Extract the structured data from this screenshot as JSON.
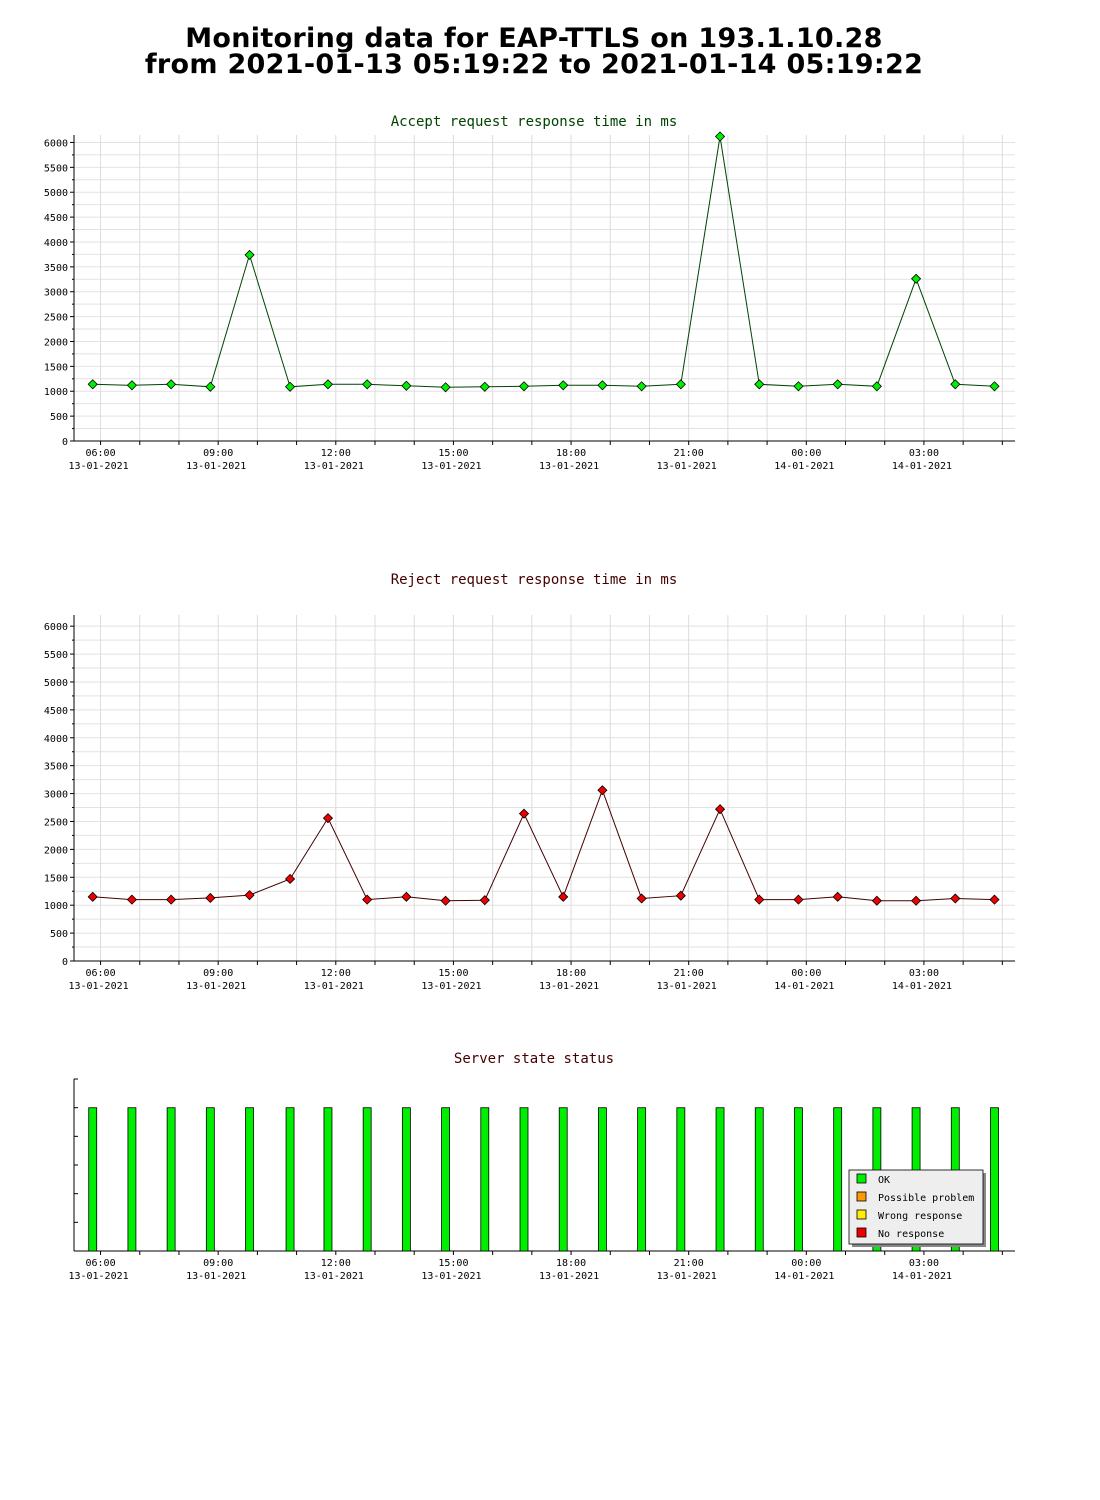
{
  "page": {
    "title_line1": "Monitoring data for EAP-TTLS on 193.1.10.28",
    "title_line2": "from 2021-01-13 05:19:22 to 2021-01-14 05:19:22"
  },
  "chart_data": [
    {
      "type": "line",
      "title": "Accept request response time in ms",
      "title_color": "#004400",
      "marker_color": "#00ee00",
      "line_color": "#004400",
      "ylim": [
        0,
        6150
      ],
      "y_ticks": [
        0,
        500,
        1000,
        1500,
        2000,
        2500,
        3000,
        3500,
        4000,
        4500,
        5000,
        5500,
        6000
      ],
      "x_ticks": [
        {
          "time": "06:00",
          "date": "13-01-2021"
        },
        {
          "time": "09:00",
          "date": "13-01-2021"
        },
        {
          "time": "12:00",
          "date": "13-01-2021"
        },
        {
          "time": "15:00",
          "date": "13-01-2021"
        },
        {
          "time": "18:00",
          "date": "13-01-2021"
        },
        {
          "time": "21:00",
          "date": "13-01-2021"
        },
        {
          "time": "00:00",
          "date": "14-01-2021"
        },
        {
          "time": "03:00",
          "date": "14-01-2021"
        }
      ],
      "x": [
        "2021-01-13 05:48",
        "2021-01-13 06:48",
        "2021-01-13 07:48",
        "2021-01-13 08:48",
        "2021-01-13 09:48",
        "2021-01-13 10:50",
        "2021-01-13 11:48",
        "2021-01-13 12:48",
        "2021-01-13 13:48",
        "2021-01-13 14:48",
        "2021-01-13 15:48",
        "2021-01-13 16:48",
        "2021-01-13 17:48",
        "2021-01-13 18:48",
        "2021-01-13 19:48",
        "2021-01-13 20:48",
        "2021-01-13 21:48",
        "2021-01-13 22:48",
        "2021-01-13 23:48",
        "2021-01-14 00:48",
        "2021-01-14 01:48",
        "2021-01-14 02:48",
        "2021-01-14 03:48",
        "2021-01-14 04:48"
      ],
      "series": [
        {
          "values": [
            1140,
            1120,
            1140,
            1090,
            3740,
            1090,
            1140,
            1140,
            1110,
            1080,
            1090,
            1100,
            1120,
            1120,
            1100,
            1140,
            6120,
            1140,
            1100,
            1140,
            1100,
            3260,
            1140,
            1100
          ]
        }
      ]
    },
    {
      "type": "line",
      "title": "Reject request response time in ms",
      "title_color": "#440000",
      "marker_color": "#ee0000",
      "line_color": "#440000",
      "ylim": [
        0,
        6200
      ],
      "y_ticks": [
        0,
        500,
        1000,
        1500,
        2000,
        2500,
        3000,
        3500,
        4000,
        4500,
        5000,
        5500,
        6000
      ],
      "x_ticks": [
        {
          "time": "06:00",
          "date": "13-01-2021"
        },
        {
          "time": "09:00",
          "date": "13-01-2021"
        },
        {
          "time": "12:00",
          "date": "13-01-2021"
        },
        {
          "time": "15:00",
          "date": "13-01-2021"
        },
        {
          "time": "18:00",
          "date": "13-01-2021"
        },
        {
          "time": "21:00",
          "date": "13-01-2021"
        },
        {
          "time": "00:00",
          "date": "14-01-2021"
        },
        {
          "time": "03:00",
          "date": "14-01-2021"
        }
      ],
      "x": [
        "2021-01-13 05:48",
        "2021-01-13 06:48",
        "2021-01-13 07:48",
        "2021-01-13 08:48",
        "2021-01-13 09:48",
        "2021-01-13 10:50",
        "2021-01-13 11:48",
        "2021-01-13 12:48",
        "2021-01-13 13:48",
        "2021-01-13 14:48",
        "2021-01-13 15:48",
        "2021-01-13 16:48",
        "2021-01-13 17:48",
        "2021-01-13 18:48",
        "2021-01-13 19:48",
        "2021-01-13 20:48",
        "2021-01-13 21:48",
        "2021-01-13 22:48",
        "2021-01-13 23:48",
        "2021-01-14 00:48",
        "2021-01-14 01:48",
        "2021-01-14 02:48",
        "2021-01-14 03:48",
        "2021-01-14 04:48"
      ],
      "series": [
        {
          "values": [
            1150,
            1100,
            1100,
            1130,
            1180,
            1470,
            2560,
            1100,
            1150,
            1080,
            1090,
            2640,
            1150,
            3060,
            1120,
            1170,
            2720,
            1100,
            1100,
            1150,
            1080,
            1080,
            1120,
            1100
          ]
        }
      ]
    },
    {
      "type": "bar",
      "title": "Server state status",
      "title_color": "#440000",
      "x_ticks": [
        {
          "time": "06:00",
          "date": "13-01-2021"
        },
        {
          "time": "09:00",
          "date": "13-01-2021"
        },
        {
          "time": "12:00",
          "date": "13-01-2021"
        },
        {
          "time": "15:00",
          "date": "13-01-2021"
        },
        {
          "time": "18:00",
          "date": "13-01-2021"
        },
        {
          "time": "21:00",
          "date": "13-01-2021"
        },
        {
          "time": "00:00",
          "date": "14-01-2021"
        },
        {
          "time": "03:00",
          "date": "14-01-2021"
        }
      ],
      "x": [
        "2021-01-13 05:48",
        "2021-01-13 06:48",
        "2021-01-13 07:48",
        "2021-01-13 08:48",
        "2021-01-13 09:48",
        "2021-01-13 10:50",
        "2021-01-13 11:48",
        "2021-01-13 12:48",
        "2021-01-13 13:48",
        "2021-01-13 14:48",
        "2021-01-13 15:48",
        "2021-01-13 16:48",
        "2021-01-13 17:48",
        "2021-01-13 18:48",
        "2021-01-13 19:48",
        "2021-01-13 20:48",
        "2021-01-13 21:48",
        "2021-01-13 22:48",
        "2021-01-13 23:48",
        "2021-01-14 00:48",
        "2021-01-14 01:48",
        "2021-01-14 02:48",
        "2021-01-14 03:48",
        "2021-01-14 04:48"
      ],
      "states": [
        "OK",
        "OK",
        "OK",
        "OK",
        "OK",
        "OK",
        "OK",
        "OK",
        "OK",
        "OK",
        "OK",
        "OK",
        "OK",
        "OK",
        "OK",
        "OK",
        "OK",
        "OK",
        "OK",
        "OK",
        "OK",
        "OK",
        "OK",
        "OK"
      ],
      "legend_position": "bottom-right",
      "legend": [
        {
          "label": "OK",
          "color": "#00ee00"
        },
        {
          "label": "Possible problem",
          "color": "#ff9900"
        },
        {
          "label": "Wrong response",
          "color": "#ffee00"
        },
        {
          "label": "No response",
          "color": "#ee0000"
        }
      ]
    }
  ]
}
